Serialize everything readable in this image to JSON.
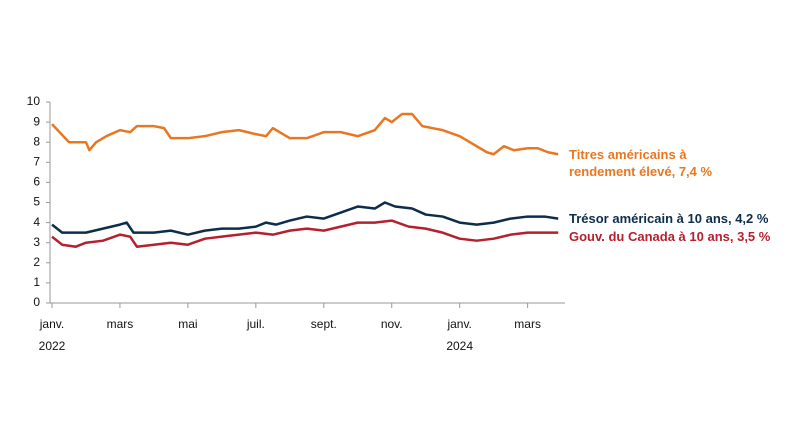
{
  "chart_data": {
    "type": "line",
    "xlim": [
      0,
      15.1
    ],
    "xticks": [
      {
        "value": 0,
        "label": "janv."
      },
      {
        "value": 2,
        "label": "mars"
      },
      {
        "value": 4,
        "label": "mai"
      },
      {
        "value": 6,
        "label": "juil."
      },
      {
        "value": 8,
        "label": "sept."
      },
      {
        "value": 10,
        "label": "nov."
      },
      {
        "value": 12,
        "label": "janv."
      },
      {
        "value": 14,
        "label": "mars"
      }
    ],
    "x_year_labels": [
      "2022",
      null,
      null,
      null,
      null,
      null,
      "2024",
      null
    ],
    "ylim": [
      0,
      10
    ],
    "yticks": [
      0,
      1,
      2,
      3,
      4,
      5,
      6,
      7,
      8,
      9,
      10
    ],
    "series": [
      {
        "name": "Titres américains à rendement élevé, 7,4 %",
        "color": "#e87722",
        "x": [
          0,
          0.5,
          1,
          1.1,
          1.3,
          1.6,
          2,
          2.3,
          2.5,
          3,
          3.3,
          3.5,
          4,
          4.5,
          5,
          5.5,
          6,
          6.3,
          6.5,
          7,
          7.5,
          8,
          8.5,
          9,
          9.5,
          9.8,
          10,
          10.3,
          10.6,
          10.9,
          11.5,
          12,
          12.3,
          12.8,
          13,
          13.3,
          13.6,
          14,
          14.3,
          14.6,
          14.9
        ],
        "values": [
          8.9,
          8.0,
          8.0,
          7.6,
          8.0,
          8.3,
          8.6,
          8.5,
          8.8,
          8.8,
          8.7,
          8.2,
          8.2,
          8.3,
          8.5,
          8.6,
          8.4,
          8.3,
          8.7,
          8.2,
          8.2,
          8.5,
          8.5,
          8.3,
          8.6,
          9.2,
          9.0,
          9.4,
          9.4,
          8.8,
          8.6,
          8.3,
          8.0,
          7.5,
          7.4,
          7.8,
          7.6,
          7.7,
          7.7,
          7.5,
          7.4
        ]
      },
      {
        "name": "Trésor américain à 10 ans, 4,2 %",
        "color": "#0d2d4a",
        "x": [
          0,
          0.3,
          1,
          1.5,
          2,
          2.2,
          2.4,
          3,
          3.5,
          4,
          4.5,
          5,
          5.5,
          6,
          6.3,
          6.6,
          7,
          7.5,
          8,
          8.5,
          9,
          9.5,
          9.8,
          10.1,
          10.6,
          11,
          11.5,
          12,
          12.5,
          13,
          13.5,
          14,
          14.5,
          14.9
        ],
        "values": [
          3.9,
          3.5,
          3.5,
          3.7,
          3.9,
          4.0,
          3.5,
          3.5,
          3.6,
          3.4,
          3.6,
          3.7,
          3.7,
          3.8,
          4.0,
          3.9,
          4.1,
          4.3,
          4.2,
          4.5,
          4.8,
          4.7,
          5.0,
          4.8,
          4.7,
          4.4,
          4.3,
          4.0,
          3.9,
          4.0,
          4.2,
          4.3,
          4.3,
          4.2
        ]
      },
      {
        "name": "Gouv. du Canada à 10 ans, 3,5 %",
        "color": "#b5202e",
        "x": [
          0,
          0.3,
          0.7,
          1,
          1.5,
          2,
          2.3,
          2.5,
          3,
          3.5,
          4,
          4.5,
          5,
          5.5,
          6,
          6.5,
          7,
          7.5,
          8,
          8.5,
          9,
          9.5,
          10,
          10.5,
          11,
          11.5,
          12,
          12.5,
          13,
          13.5,
          14,
          14.5,
          14.9
        ],
        "values": [
          3.3,
          2.9,
          2.8,
          3.0,
          3.1,
          3.4,
          3.3,
          2.8,
          2.9,
          3.0,
          2.9,
          3.2,
          3.3,
          3.4,
          3.5,
          3.4,
          3.6,
          3.7,
          3.6,
          3.8,
          4.0,
          4.0,
          4.1,
          3.8,
          3.7,
          3.5,
          3.2,
          3.1,
          3.2,
          3.4,
          3.5,
          3.5,
          3.5
        ]
      }
    ]
  }
}
